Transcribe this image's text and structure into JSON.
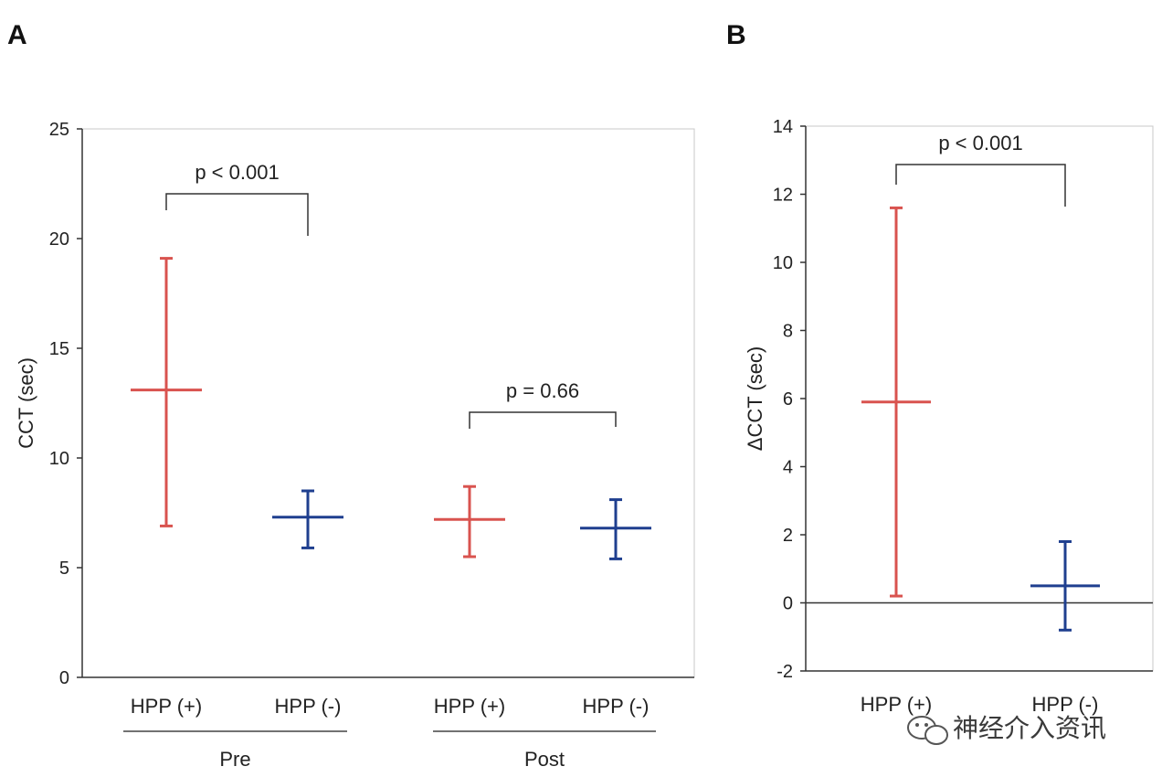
{
  "chart_data": [
    {
      "panel": "A",
      "type": "errorbar",
      "ylabel": "CCT (sec)",
      "ylim": [
        0,
        25
      ],
      "yticks": [
        0,
        5,
        10,
        15,
        20,
        25
      ],
      "groups": [
        {
          "name": "Pre",
          "categories": [
            "HPP (+)",
            "HPP (-)"
          ]
        },
        {
          "name": "Post",
          "categories": [
            "HPP (+)",
            "HPP (-)"
          ]
        }
      ],
      "points": [
        {
          "group": "Pre",
          "category": "HPP (+)",
          "mean": 13.1,
          "low": 6.9,
          "high": 19.1,
          "color": "#d9534f"
        },
        {
          "group": "Pre",
          "category": "HPP (-)",
          "mean": 7.3,
          "low": 5.9,
          "high": 8.5,
          "color": "#1f3f8f"
        },
        {
          "group": "Post",
          "category": "HPP (+)",
          "mean": 7.2,
          "low": 5.5,
          "high": 8.7,
          "color": "#d9534f"
        },
        {
          "group": "Post",
          "category": "HPP (-)",
          "mean": 6.8,
          "low": 5.4,
          "high": 8.1,
          "color": "#1f3f8f"
        }
      ],
      "annotations": [
        {
          "text": "p < 0.001",
          "from": 0,
          "to": 1
        },
        {
          "text": "p = 0.66",
          "from": 2,
          "to": 3
        }
      ],
      "grid": false
    },
    {
      "panel": "B",
      "type": "errorbar",
      "ylabel": "ΔCCT (sec)",
      "ylim": [
        -2,
        14
      ],
      "yticks": [
        -2,
        0,
        2,
        4,
        6,
        8,
        10,
        12,
        14
      ],
      "zero_line": true,
      "categories": [
        "HPP (+)",
        "HPP (-)"
      ],
      "points": [
        {
          "category": "HPP (+)",
          "mean": 5.9,
          "low": 0.2,
          "high": 11.6,
          "color": "#d9534f"
        },
        {
          "category": "HPP (-)",
          "mean": 0.5,
          "low": -0.8,
          "high": 1.8,
          "color": "#1f3f8f"
        }
      ],
      "annotations": [
        {
          "text": "p < 0.001",
          "from": 0,
          "to": 1
        }
      ],
      "grid": false
    }
  ],
  "watermark": {
    "text": "神经介入资讯",
    "icon": "wechat-icon"
  }
}
